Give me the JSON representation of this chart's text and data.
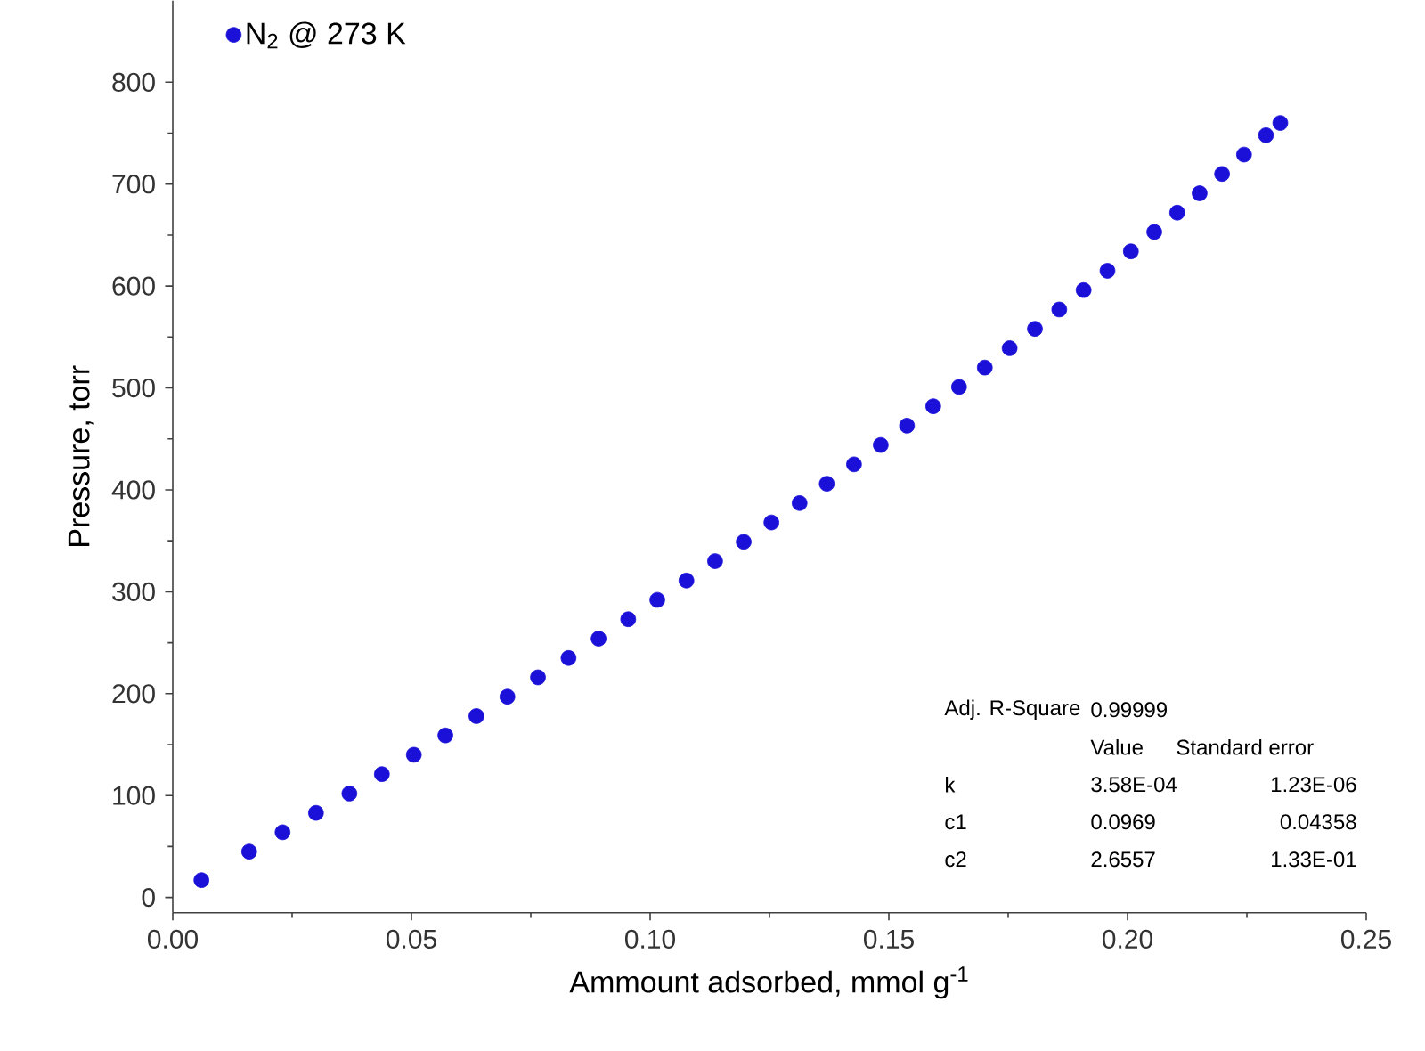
{
  "chart_data": {
    "type": "scatter",
    "xlabel": "Ammount adsorbed, mmol g$^{-1}$",
    "ylabel": "Pressure, torr",
    "x": [
      0.006,
      0.016,
      0.023,
      0.03,
      0.037,
      0.0438,
      0.0505,
      0.0571,
      0.0636,
      0.0701,
      0.0765,
      0.0829,
      0.0892,
      0.0954,
      0.1015,
      0.1076,
      0.1136,
      0.1196,
      0.1254,
      0.1313,
      0.137,
      0.1427,
      0.1483,
      0.1538,
      0.1593,
      0.1647,
      0.1701,
      0.1753,
      0.1806,
      0.1857,
      0.1908,
      0.1958,
      0.2007,
      0.2056,
      0.2104,
      0.2151,
      0.2198,
      0.2244,
      0.229,
      0.232
    ],
    "series": [
      {
        "name": "N$_{2}$ @ 273 K",
        "color": "#1a10d8",
        "values": [
          17,
          45,
          64,
          83,
          102,
          121,
          140,
          159,
          178,
          197,
          216,
          235,
          254,
          273,
          292,
          311,
          330,
          349,
          368,
          387,
          406,
          425,
          444,
          463,
          482,
          501,
          520,
          539,
          558,
          577,
          596,
          615,
          634,
          653,
          672,
          691,
          710,
          729,
          748,
          760
        ]
      }
    ],
    "marker": "circle",
    "legend": "top left",
    "xlim": [
      0,
      0.25
    ],
    "ylim": [
      -15,
      880
    ],
    "xticks": [
      {
        "value": 0,
        "label": "0.00"
      },
      {
        "value": 0.05,
        "label": "0.05"
      },
      {
        "value": 0.1,
        "label": "0.10"
      },
      {
        "value": 0.15,
        "label": "0.15"
      },
      {
        "value": 0.2,
        "label": "0.20"
      },
      {
        "value": 0.25,
        "label": "0.25"
      }
    ],
    "yticks": [
      0,
      100,
      200,
      300,
      400,
      500,
      600,
      700,
      800
    ],
    "annotations": [
      "Adj. R-Square",
      "0.99999",
      "Value",
      "Standard error",
      "k",
      "3.58E-04",
      "1.23E-06",
      "c1",
      "0.0969",
      "0.04358",
      "c2",
      "2.6557",
      "1.33E-01"
    ]
  }
}
